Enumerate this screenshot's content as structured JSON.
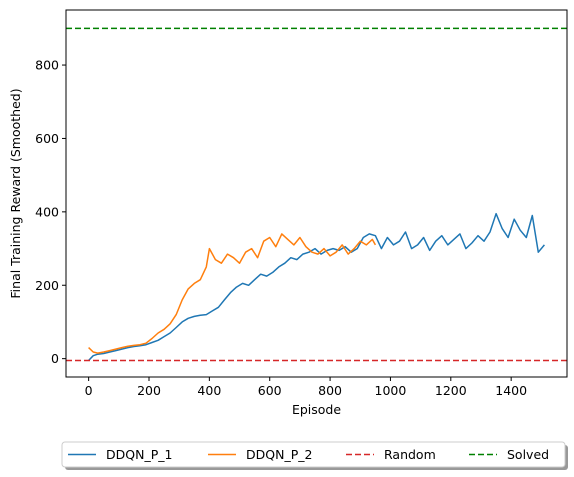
{
  "chart_data": {
    "type": "line",
    "title": "",
    "xlabel": "Episode",
    "ylabel": "Final Training Reward (Smoothed)",
    "xlim": [
      -75,
      1585
    ],
    "ylim": [
      -50,
      950
    ],
    "x_ticks": [
      0,
      200,
      400,
      600,
      800,
      1000,
      1200,
      1400
    ],
    "y_ticks": [
      0,
      200,
      400,
      600,
      800
    ],
    "grid": false,
    "legend_placement": "bottom-center-outside",
    "series": [
      {
        "name": "DDQN_P_1",
        "color": "#1f77b4",
        "points": [
          [
            0,
            -5
          ],
          [
            15,
            8
          ],
          [
            30,
            12
          ],
          [
            50,
            14
          ],
          [
            70,
            18
          ],
          [
            90,
            22
          ],
          [
            110,
            26
          ],
          [
            130,
            30
          ],
          [
            150,
            33
          ],
          [
            170,
            35
          ],
          [
            190,
            38
          ],
          [
            210,
            44
          ],
          [
            230,
            50
          ],
          [
            250,
            60
          ],
          [
            270,
            70
          ],
          [
            290,
            85
          ],
          [
            310,
            100
          ],
          [
            330,
            110
          ],
          [
            350,
            115
          ],
          [
            370,
            118
          ],
          [
            390,
            120
          ],
          [
            410,
            130
          ],
          [
            430,
            140
          ],
          [
            450,
            160
          ],
          [
            470,
            180
          ],
          [
            490,
            195
          ],
          [
            510,
            205
          ],
          [
            530,
            200
          ],
          [
            550,
            215
          ],
          [
            570,
            230
          ],
          [
            590,
            225
          ],
          [
            610,
            235
          ],
          [
            630,
            250
          ],
          [
            650,
            260
          ],
          [
            670,
            275
          ],
          [
            690,
            270
          ],
          [
            710,
            285
          ],
          [
            730,
            290
          ],
          [
            750,
            300
          ],
          [
            770,
            285
          ],
          [
            790,
            295
          ],
          [
            810,
            300
          ],
          [
            830,
            295
          ],
          [
            850,
            305
          ],
          [
            870,
            290
          ],
          [
            890,
            300
          ],
          [
            910,
            330
          ],
          [
            930,
            340
          ],
          [
            950,
            335
          ],
          [
            970,
            300
          ],
          [
            990,
            330
          ],
          [
            1010,
            310
          ],
          [
            1030,
            320
          ],
          [
            1050,
            345
          ],
          [
            1070,
            300
          ],
          [
            1090,
            310
          ],
          [
            1110,
            330
          ],
          [
            1130,
            295
          ],
          [
            1150,
            320
          ],
          [
            1170,
            335
          ],
          [
            1190,
            310
          ],
          [
            1210,
            325
          ],
          [
            1230,
            340
          ],
          [
            1250,
            300
          ],
          [
            1270,
            315
          ],
          [
            1290,
            335
          ],
          [
            1310,
            320
          ],
          [
            1330,
            345
          ],
          [
            1350,
            395
          ],
          [
            1370,
            355
          ],
          [
            1390,
            330
          ],
          [
            1410,
            380
          ],
          [
            1430,
            350
          ],
          [
            1450,
            330
          ],
          [
            1470,
            390
          ],
          [
            1490,
            290
          ],
          [
            1510,
            310
          ]
        ]
      },
      {
        "name": "DDQN_P_2",
        "color": "#ff7f0e",
        "points": [
          [
            0,
            30
          ],
          [
            15,
            18
          ],
          [
            30,
            15
          ],
          [
            50,
            18
          ],
          [
            70,
            22
          ],
          [
            90,
            26
          ],
          [
            110,
            30
          ],
          [
            130,
            34
          ],
          [
            150,
            36
          ],
          [
            170,
            38
          ],
          [
            190,
            42
          ],
          [
            210,
            55
          ],
          [
            230,
            70
          ],
          [
            250,
            80
          ],
          [
            270,
            95
          ],
          [
            290,
            120
          ],
          [
            310,
            160
          ],
          [
            330,
            190
          ],
          [
            350,
            205
          ],
          [
            370,
            215
          ],
          [
            390,
            250
          ],
          [
            400,
            300
          ],
          [
            420,
            270
          ],
          [
            440,
            260
          ],
          [
            460,
            285
          ],
          [
            480,
            275
          ],
          [
            500,
            260
          ],
          [
            520,
            290
          ],
          [
            540,
            300
          ],
          [
            560,
            275
          ],
          [
            580,
            320
          ],
          [
            600,
            330
          ],
          [
            620,
            305
          ],
          [
            640,
            340
          ],
          [
            660,
            325
          ],
          [
            680,
            310
          ],
          [
            700,
            330
          ],
          [
            720,
            305
          ],
          [
            740,
            290
          ],
          [
            760,
            285
          ],
          [
            780,
            300
          ],
          [
            800,
            280
          ],
          [
            820,
            290
          ],
          [
            840,
            310
          ],
          [
            860,
            285
          ],
          [
            880,
            300
          ],
          [
            900,
            320
          ],
          [
            920,
            310
          ],
          [
            940,
            325
          ],
          [
            950,
            310
          ]
        ]
      },
      {
        "name": "Random",
        "color": "#d62728",
        "hline": -5
      },
      {
        "name": "Solved",
        "color": "#008000",
        "hline": 900
      }
    ]
  }
}
